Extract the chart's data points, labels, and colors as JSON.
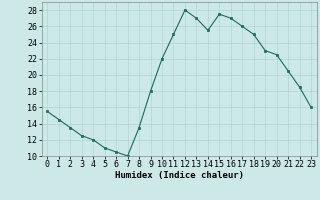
{
  "x": [
    0,
    1,
    2,
    3,
    4,
    5,
    6,
    7,
    8,
    9,
    10,
    11,
    12,
    13,
    14,
    15,
    16,
    17,
    18,
    19,
    20,
    21,
    22,
    23
  ],
  "y": [
    15.5,
    14.5,
    13.5,
    12.5,
    12,
    11,
    10.5,
    10,
    13.5,
    18,
    22,
    25,
    28,
    27,
    25.5,
    27.5,
    27,
    26,
    25,
    23,
    22.5,
    20.5,
    18.5,
    16
  ],
  "line_color": "#1a6b5a",
  "marker": "s",
  "marker_size": 2.0,
  "bg_color": "#cce9e8",
  "grid_color": "#b0d4d3",
  "xlabel": "Humidex (Indice chaleur)",
  "ylim": [
    10,
    29
  ],
  "yticks": [
    10,
    12,
    14,
    16,
    18,
    20,
    22,
    24,
    26,
    28
  ],
  "xticks": [
    0,
    1,
    2,
    3,
    4,
    5,
    6,
    7,
    8,
    9,
    10,
    11,
    12,
    13,
    14,
    15,
    16,
    17,
    18,
    19,
    20,
    21,
    22,
    23
  ],
  "label_fontsize": 6.5,
  "tick_fontsize": 6.0
}
